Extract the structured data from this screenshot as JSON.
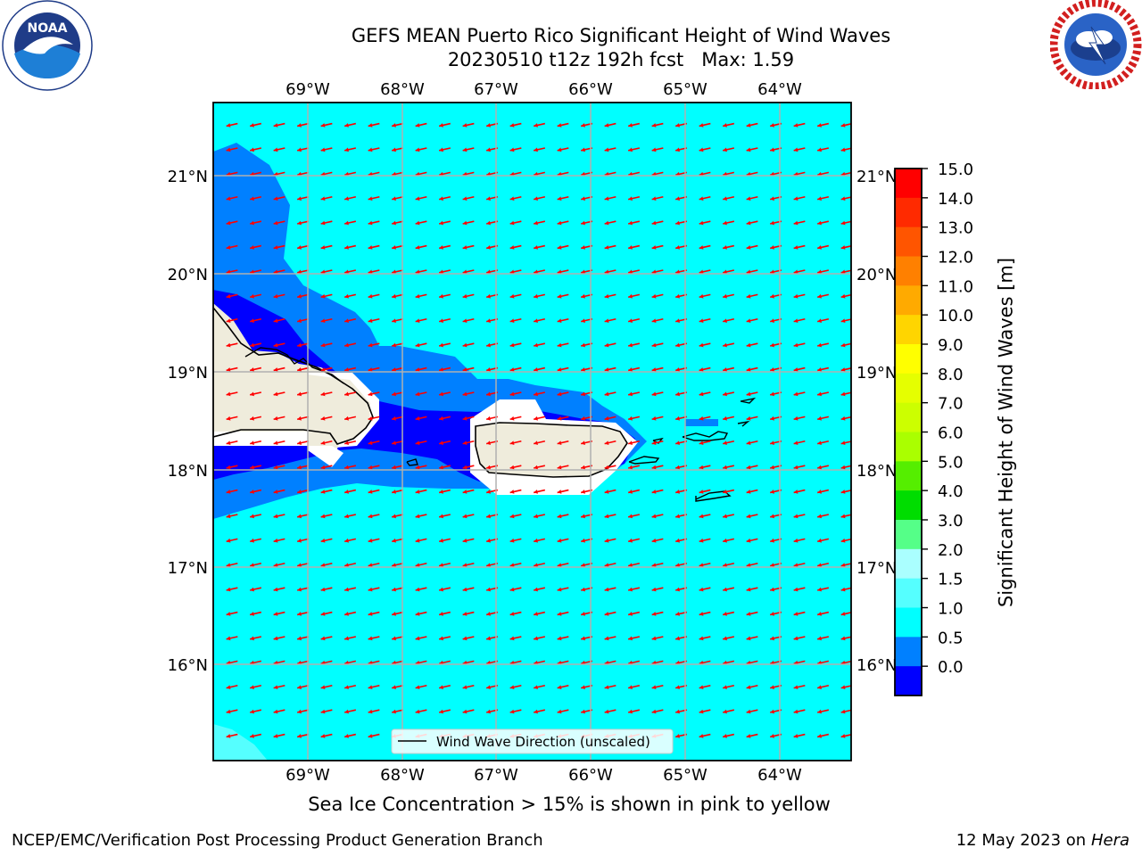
{
  "title": {
    "line1": "GEFS MEAN Puerto Rico Significant Height of Wind Waves",
    "line2": "20230510 t12z 192h fcst   Max: 1.59"
  },
  "logos": {
    "left": {
      "icon": "noaa-logo",
      "text": "NOAA",
      "ring_text": "NATIONAL OCEANIC AND ATMOSPHERIC ADMINISTRATION · U.S. DEPARTMENT OF COMMERCE"
    },
    "right": {
      "icon": "nws-logo",
      "ring_text": "NATIONAL WEATHER SERVICE"
    }
  },
  "map": {
    "lon_labels": [
      "69°W",
      "68°W",
      "67°W",
      "66°W",
      "65°W",
      "64°W"
    ],
    "lat_labels": [
      "21°N",
      "20°N",
      "19°N",
      "18°N",
      "17°N",
      "16°N"
    ],
    "legend": "Wind Wave Direction (unscaled)",
    "colors": {
      "ocean": "#00ffff",
      "band_0_5_1_0": "#0080ff",
      "band_0_0_0_5": "#0000ff",
      "band_2_0_3_0": "#55ffff",
      "land": "#efecdc",
      "arrows": "#ff0000",
      "grid": "#b0b0b0"
    },
    "arrow_direction": "toward west-southwest"
  },
  "colorbar": {
    "tick_labels": [
      "15.0",
      "14.0",
      "13.0",
      "12.0",
      "11.0",
      "10.0",
      "9.0",
      "8.0",
      "7.0",
      "6.0",
      "5.0",
      "4.0",
      "3.0",
      "2.0",
      "1.5",
      "1.0",
      "0.5",
      "0.0"
    ],
    "colors_top_to_bottom": [
      "#ff0000",
      "#ff2a00",
      "#ff5500",
      "#ff8000",
      "#ffaa00",
      "#ffd500",
      "#ffff00",
      "#e5ff00",
      "#ccff00",
      "#aaff00",
      "#55ee00",
      "#00dd00",
      "#55ff88",
      "#aaffff",
      "#55ffff",
      "#00ffff",
      "#0080ff",
      "#0000ff"
    ],
    "label": "Significant Height of Wind Waves [m]"
  },
  "footer": {
    "note": "Sea Ice Concentration > 15% is shown in pink to yellow",
    "credit": "NCEP/EMC/Verification Post Processing Product Generation Branch",
    "date": "12 May 2023 on",
    "host": "Hera"
  }
}
